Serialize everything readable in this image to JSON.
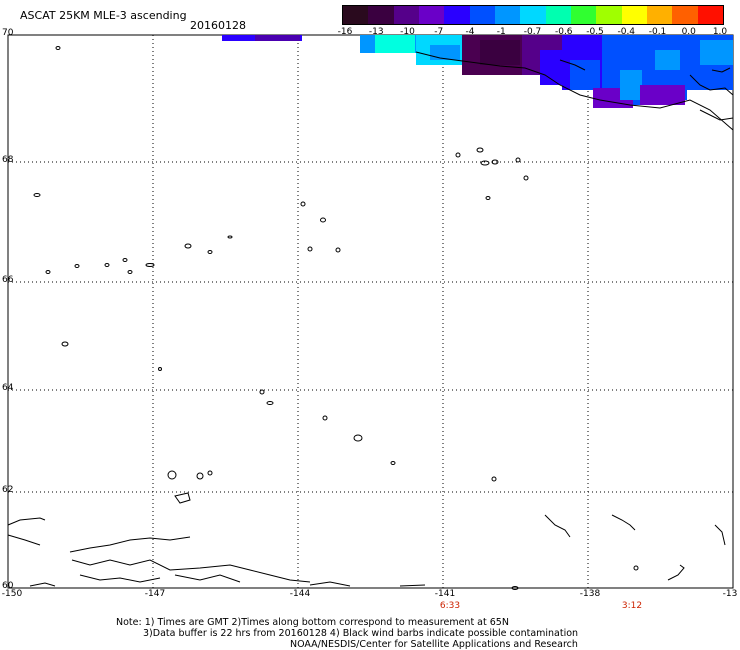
{
  "header": {
    "title": "ASCAT 25KM MLE-3 ascending",
    "date": "20160128"
  },
  "colorbar": {
    "labels": [
      "-16",
      "-13",
      "-10",
      "-7",
      "-4",
      "-1",
      "-0.7",
      "-0.6",
      "-0.5",
      "-0.4",
      "-0.1",
      "0.0",
      "1.0"
    ],
    "colors": [
      "#2a0a1e",
      "#3a0040",
      "#55008a",
      "#6a00c8",
      "#2a00ff",
      "#0050ff",
      "#0096ff",
      "#00d8ff",
      "#00ffb0",
      "#30ff30",
      "#a0ff00",
      "#ffff00",
      "#ffb000",
      "#ff6000",
      "#ff1000"
    ]
  },
  "axes": {
    "lat_labels": [
      "70",
      "68",
      "66",
      "64",
      "62",
      "60"
    ],
    "lon_labels": [
      "-150",
      "-147",
      "-144",
      "-141",
      "-138",
      "-13"
    ],
    "time_labels": [
      "6:33",
      "3:12"
    ]
  },
  "notes": {
    "line1": "Note: 1) Times are GMT 2)Times along bottom correspond to measurement at 65N",
    "line2": "3)Data buffer is 22 hrs from 20160128 4) Black wind barbs indicate possible contamination",
    "line3": "NOAA/NESDIS/Center for Satellite Applications and Research"
  },
  "colors": {
    "gridline": "#000000",
    "time_label": "#cc2200"
  }
}
